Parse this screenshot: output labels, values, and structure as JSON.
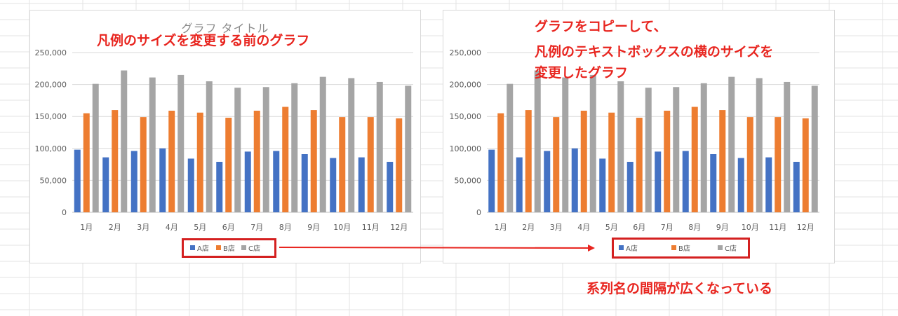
{
  "chart_data": [
    {
      "type": "bar",
      "title": "グラフ タイトル",
      "categories": [
        "1月",
        "2月",
        "3月",
        "4月",
        "5月",
        "6月",
        "7月",
        "8月",
        "9月",
        "10月",
        "11月",
        "12月"
      ],
      "series": [
        {
          "name": "A店",
          "color": "#4472c4",
          "values": [
            98000,
            86000,
            96000,
            100000,
            84000,
            79000,
            95000,
            96000,
            91000,
            85000,
            86000,
            79000
          ]
        },
        {
          "name": "B店",
          "color": "#ed7d31",
          "values": [
            155000,
            160000,
            149000,
            159000,
            156000,
            148000,
            159000,
            165000,
            160000,
            149000,
            149000,
            147000
          ]
        },
        {
          "name": "C店",
          "color": "#a5a5a5",
          "values": [
            201000,
            222000,
            211000,
            215000,
            205000,
            195000,
            196000,
            202000,
            212000,
            210000,
            204000,
            198000
          ]
        }
      ],
      "yticks": [
        "0",
        "50,000",
        "100,000",
        "150,000",
        "200,000",
        "250,000"
      ],
      "ylim": [
        0,
        250000
      ],
      "legend": "bottom",
      "grid": true
    },
    {
      "type": "bar",
      "title": "",
      "categories": [
        "1月",
        "2月",
        "3月",
        "4月",
        "5月",
        "6月",
        "7月",
        "8月",
        "9月",
        "10月",
        "11月",
        "12月"
      ],
      "series": [
        {
          "name": "A店",
          "color": "#4472c4",
          "values": [
            98000,
            86000,
            96000,
            100000,
            84000,
            79000,
            95000,
            96000,
            91000,
            85000,
            86000,
            79000
          ]
        },
        {
          "name": "B店",
          "color": "#ed7d31",
          "values": [
            155000,
            160000,
            149000,
            159000,
            156000,
            148000,
            159000,
            165000,
            160000,
            149000,
            149000,
            147000
          ]
        },
        {
          "name": "C店",
          "color": "#a5a5a5",
          "values": [
            201000,
            222000,
            211000,
            215000,
            205000,
            195000,
            196000,
            202000,
            212000,
            210000,
            204000,
            198000
          ]
        }
      ],
      "yticks": [
        "0",
        "50,000",
        "100,000",
        "150,000",
        "200,000",
        "250,000"
      ],
      "ylim": [
        0,
        250000
      ],
      "legend": "bottom",
      "grid": true
    }
  ],
  "callouts": {
    "left": "凡例のサイズを変更する前のグラフ",
    "right_line1": "グラフをコピーして、",
    "right_line2": "凡例のテキストボックスの横のサイズを",
    "right_line3": "変更したグラフ",
    "bottom": "系列名の間隔が広くなっている"
  },
  "colors": {
    "annotation": "#e8251f",
    "highlight_border": "#d42020"
  }
}
